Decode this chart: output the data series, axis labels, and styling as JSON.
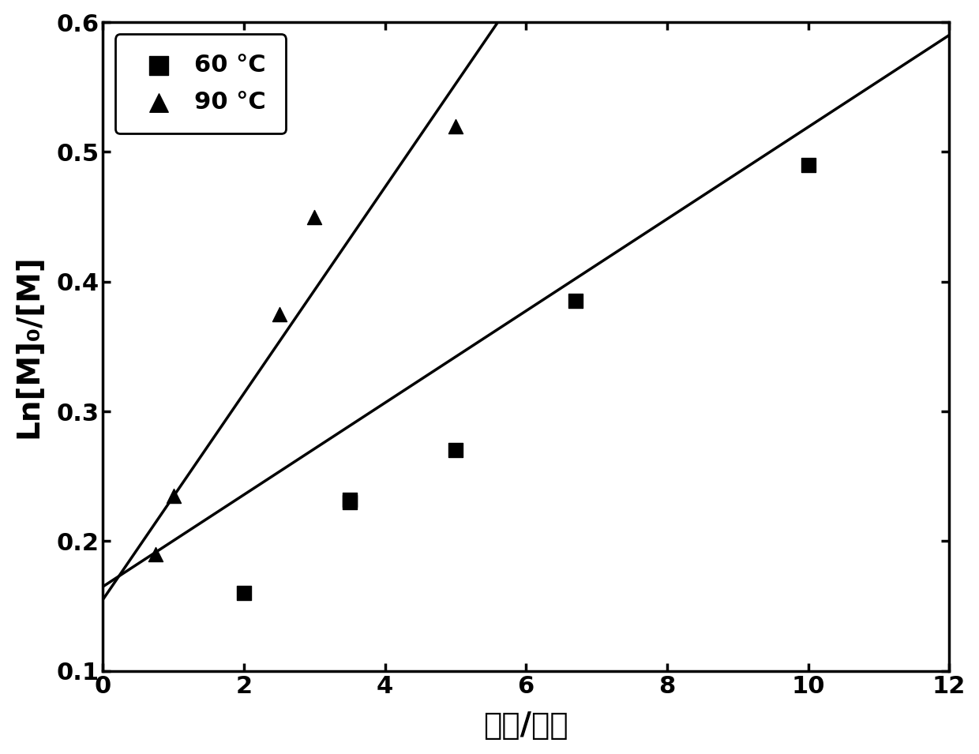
{
  "title": "",
  "xlabel": "时间/小时",
  "ylabel": "Ln[M]₀/[M]",
  "xlim": [
    0,
    12
  ],
  "ylim": [
    0.1,
    0.6
  ],
  "xticks": [
    0,
    2,
    4,
    6,
    8,
    10,
    12
  ],
  "yticks": [
    0.1,
    0.2,
    0.3,
    0.4,
    0.5,
    0.6
  ],
  "series_60": {
    "label": "60 °C",
    "x": [
      2.0,
      3.5,
      3.5,
      5.0,
      6.7,
      10.0
    ],
    "y": [
      0.16,
      0.23,
      0.232,
      0.27,
      0.385,
      0.49
    ],
    "marker": "s",
    "fit_x": [
      0,
      12
    ],
    "fit_y": [
      0.165,
      0.59
    ]
  },
  "series_90": {
    "label": "90 °C",
    "x": [
      0.75,
      1.0,
      2.5,
      3.0,
      5.0
    ],
    "y": [
      0.19,
      0.235,
      0.375,
      0.45,
      0.52
    ],
    "marker": "^",
    "fit_x": [
      0,
      5.6
    ],
    "fit_y": [
      0.155,
      0.6
    ]
  },
  "marker_size": 13,
  "line_color": "#000000",
  "marker_color": "#000000",
  "background_color": "#ffffff",
  "font_size_ticks": 22,
  "font_size_labels": 28,
  "font_size_legend": 22,
  "legend_loc": "upper left"
}
